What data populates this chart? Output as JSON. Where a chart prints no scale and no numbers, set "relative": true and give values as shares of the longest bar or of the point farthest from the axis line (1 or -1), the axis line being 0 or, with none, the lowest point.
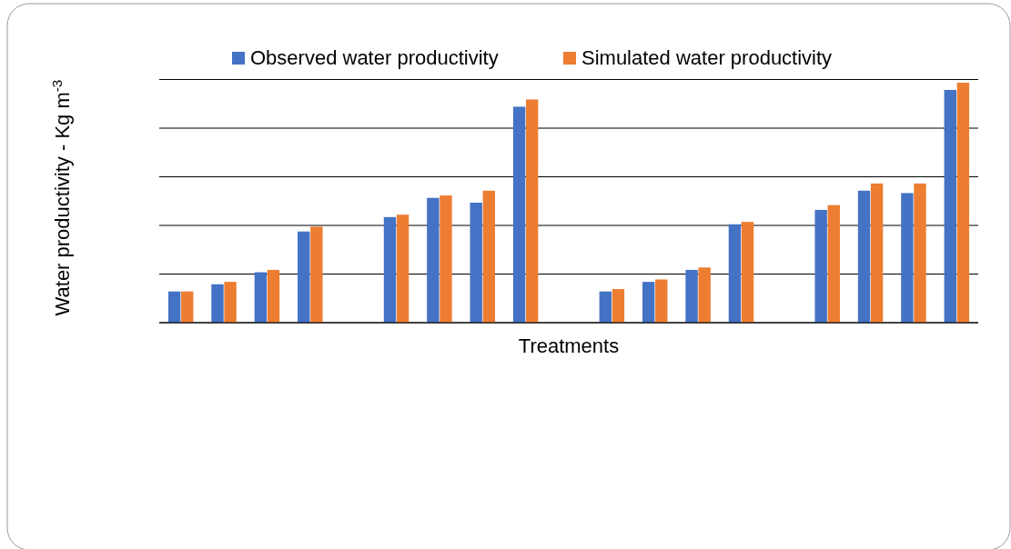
{
  "chart_data": {
    "type": "bar",
    "relative": true,
    "xlabel": "Treatments",
    "ylabel": "Water productivity - Kg m$^{-3}$",
    "categories": [
      null,
      null,
      null,
      null,
      null,
      null,
      null,
      null,
      null,
      null,
      null,
      null,
      null,
      null,
      null,
      null
    ],
    "series": [
      {
        "name": "Observed water productivity",
        "color": "#4472c4",
        "values": [
          0.13,
          0.16,
          0.21,
          0.38,
          0.44,
          0.52,
          0.5,
          0.9,
          0.13,
          0.17,
          0.22,
          0.41,
          0.47,
          0.55,
          0.54,
          0.97
        ]
      },
      {
        "name": "Simulated water productivity",
        "color": "#ed7d31",
        "values": [
          0.13,
          0.17,
          0.22,
          0.4,
          0.45,
          0.53,
          0.55,
          0.93,
          0.14,
          0.18,
          0.23,
          0.42,
          0.49,
          0.58,
          0.58,
          1.0
        ]
      }
    ],
    "grid": "y",
    "legend": "top"
  }
}
